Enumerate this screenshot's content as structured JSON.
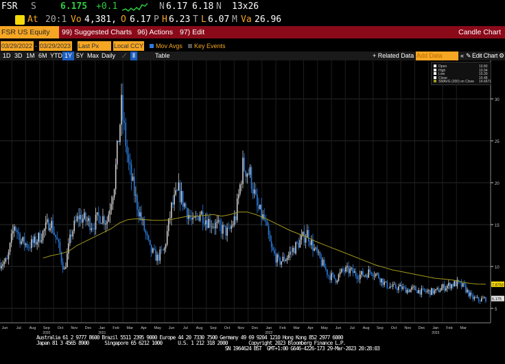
{
  "quote": {
    "ticker": "FSR",
    "s": "S",
    "last": "6.175",
    "change": "+0.1",
    "bid_label": "N",
    "bid": "6.17",
    "ask": "6.18",
    "ask_label": "N",
    "size": "13x26",
    "at_label": "At",
    "time": "20:1",
    "vol_label": "Vo",
    "volume": "4,381,",
    "open_label": "O",
    "open": "6.17",
    "high_label": "H",
    "high": "6.23",
    "low_label": "L",
    "low": "6.07",
    "vwap_label": "Va",
    "vwap": "26.96",
    "alert_label": "P",
    "t_label": "T",
    "m_label": "M"
  },
  "toolbar": {
    "security": "FSR US Equity",
    "suggested": "99) Suggested Charts",
    "actions": "96) Actions",
    "edit": "97) Edit",
    "title": "Candle Chart"
  },
  "controls": {
    "start": "03/29/2022",
    "end": "03/29/2023",
    "field": "Last Px",
    "currency": "Local CCY",
    "mov_avgs": "Mov Avgs",
    "key_events": "Key Events",
    "periods": [
      "1D",
      "3D",
      "1M",
      "6M",
      "YTD",
      "1Y",
      "5Y",
      "Max"
    ],
    "freq": "Daily",
    "table": "Table",
    "related": "+ Related Data",
    "add_data_placeholder": "Add Data",
    "edit_chart": "Edit Chart"
  },
  "legend": [
    {
      "label": "Open",
      "value": "10.80"
    },
    {
      "label": "High",
      "value": "10.94"
    },
    {
      "label": "Low",
      "value": "10.30"
    },
    {
      "label": "Close",
      "value": "10.48"
    },
    {
      "label": "SMAVG (200)  on Close",
      "value": "14.6671"
    }
  ],
  "colors": {
    "up": "#cfcfcf",
    "down": "#2b7de0",
    "ma": "#a39a1e",
    "accent": "#f5a623",
    "bar": "#8b0a1a"
  },
  "footer": [
    "Australia 61 2 9777 8600 Brazil 5511 2395 9000 Europe 44 20 7330 7500 Germany 49 69 9204 1210 Hong Kong 852 2977 6000",
    "Japan 81 3 4565 8900      Singapore 65 6212 1000      U.S. 1 212 318 2000        Copyright 2023 Bloomberg Finance L.P.",
    "                                                                        SN 1964624 BST  GMT+1:00 G646-4226-173 29-Mar-2023 20:28:03"
  ],
  "chart_data": {
    "type": "candlestick",
    "ylim": [
      3,
      33
    ],
    "yticks": [
      5,
      10,
      15,
      20,
      25,
      30
    ],
    "last_label": "6.175",
    "ma_label": "7.8753",
    "xticks": [
      "Jun",
      "Jul",
      "Aug",
      "Sep",
      "Oct",
      "Nov",
      "Dec",
      "Jan",
      "Feb",
      "Mar",
      "Apr",
      "May",
      "Jun",
      "Jul",
      "Aug",
      "Sep",
      "Oct",
      "Nov",
      "Dec",
      "Jan",
      "Feb",
      "Mar",
      "Apr",
      "May",
      "Jun",
      "Jul",
      "Aug",
      "Sep",
      "Oct",
      "Nov",
      "Dec",
      "Jan",
      "Feb",
      "Mar"
    ],
    "years": [
      {
        "label": "2020",
        "tick": 3
      },
      {
        "label": "2021",
        "tick": 7
      },
      {
        "label": "2022",
        "tick": 19
      },
      {
        "label": "2023",
        "tick": 31
      }
    ],
    "closes_semimonthly": [
      10.4,
      10.6,
      15,
      13,
      12.5,
      13,
      14,
      15.5,
      13,
      9.5,
      14,
      16,
      15.5,
      15,
      16,
      15.5,
      20,
      29,
      22,
      18,
      15,
      12,
      11,
      12,
      17,
      19,
      17,
      15,
      16.5,
      15.5,
      15,
      14.5,
      14,
      16,
      22,
      21,
      17,
      15.5,
      12,
      10.5,
      11,
      12,
      13,
      14,
      12,
      10.5,
      9,
      8.5,
      9.5,
      9.5,
      9,
      9,
      9.5,
      8.8,
      7.8,
      7.5,
      7.5,
      7.2,
      7.3,
      7,
      7,
      7,
      7.5,
      7.8,
      8,
      7.5,
      6.3,
      6,
      6.175
    ],
    "sma200": [
      11,
      11.3,
      11.5,
      11.8,
      12.5,
      13,
      13.5,
      14,
      14.5,
      15.2,
      15.6,
      15.7,
      15.6,
      15.5,
      15.5,
      15.6,
      15.8,
      16,
      16,
      16.1,
      16.2,
      16,
      16.2,
      16.5,
      16.5,
      16.2,
      15.8,
      15.3,
      14.8,
      14.3,
      13.9,
      13.5,
      13,
      12.6,
      12.2,
      11.8,
      11.4,
      11,
      10.6,
      10.2,
      9.9,
      9.6,
      9.4,
      9.2,
      9,
      8.8,
      8.6,
      8.5,
      8.4,
      8.2,
      8,
      7.9,
      7.88
    ]
  }
}
